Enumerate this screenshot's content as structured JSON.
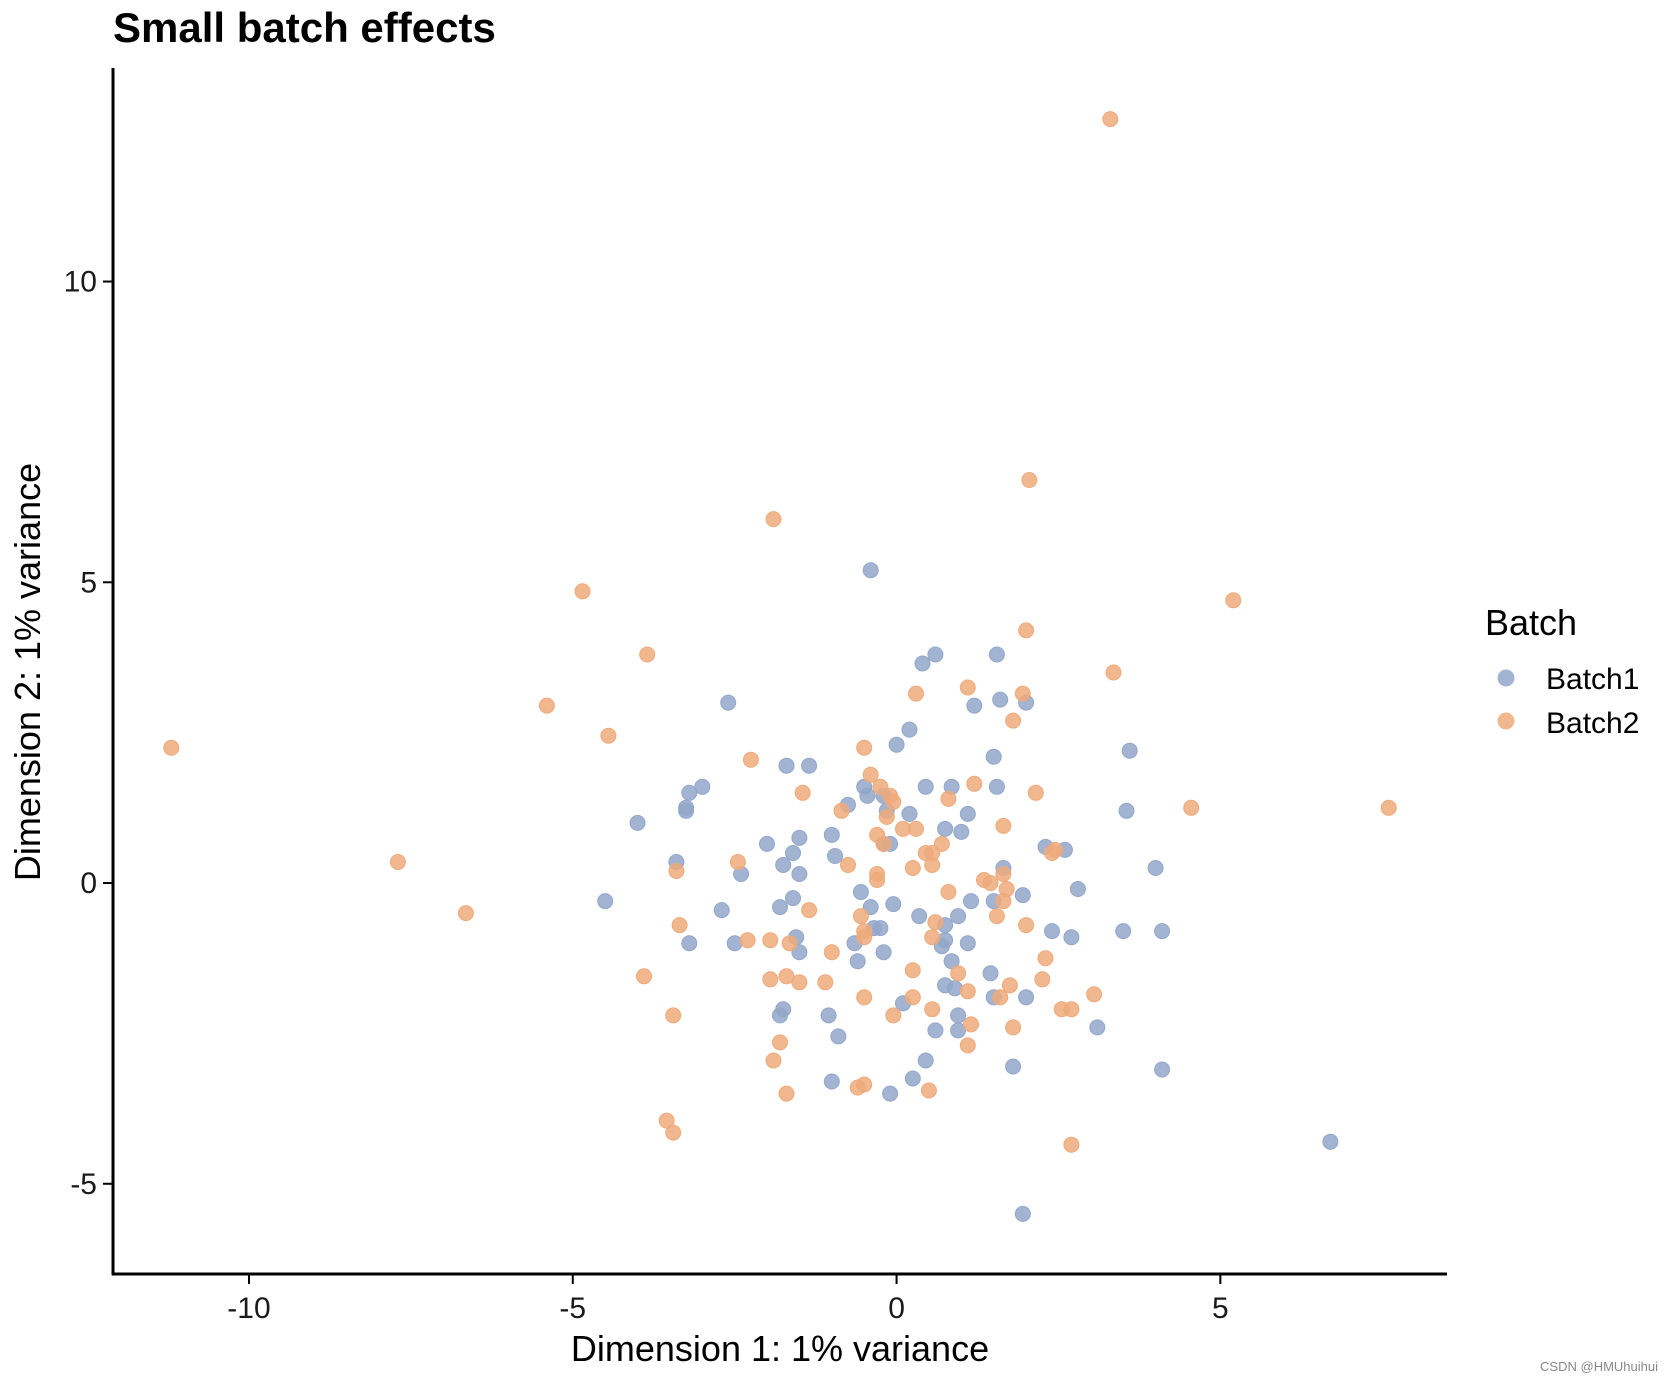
{
  "colors": {
    "batch1": "#92a7c9",
    "batch2": "#eeaa7b",
    "axis": "#000000"
  },
  "watermark": "CSDN @HMUhuihui",
  "chart_data": {
    "type": "scatter",
    "title": "Small batch effects",
    "xlabel": "Dimension 1: 1% variance",
    "ylabel": "Dimension 2: 1% variance",
    "xlim": [
      -12.1,
      8.5
    ],
    "ylim": [
      -6.5,
      13.55
    ],
    "xticks": [
      -10,
      -5,
      0,
      5
    ],
    "xtick_labels": [
      "-10",
      "-5",
      "0",
      "5"
    ],
    "yticks": [
      -5,
      0,
      5,
      10
    ],
    "ytick_labels": [
      "-5",
      "0",
      "5",
      "10"
    ],
    "grid": false,
    "legend": {
      "title": "Batch",
      "position": "right"
    },
    "series": [
      {
        "name": "Batch1",
        "color_key": "batch1",
        "points": [
          [
            -0.4,
            5.2
          ],
          [
            -2.6,
            3.0
          ],
          [
            -3.0,
            1.6
          ],
          [
            -3.2,
            1.5
          ],
          [
            -3.25,
            1.25
          ],
          [
            -3.25,
            1.2
          ],
          [
            -4.0,
            1.0
          ],
          [
            -3.4,
            0.35
          ],
          [
            -4.5,
            -0.3
          ],
          [
            -3.2,
            -1.0
          ],
          [
            -2.7,
            -0.45
          ],
          [
            -2.5,
            -1.0
          ],
          [
            -2.4,
            0.15
          ],
          [
            -2.0,
            0.65
          ],
          [
            -1.7,
            1.95
          ],
          [
            -1.35,
            1.95
          ],
          [
            -1.5,
            0.75
          ],
          [
            -1.6,
            0.5
          ],
          [
            -1.75,
            0.3
          ],
          [
            -1.5,
            0.15
          ],
          [
            -1.6,
            -0.25
          ],
          [
            -1.8,
            -0.4
          ],
          [
            -1.55,
            -0.9
          ],
          [
            -1.5,
            -1.15
          ],
          [
            -1.75,
            -2.1
          ],
          [
            -1.8,
            -2.2
          ],
          [
            -1.05,
            -2.2
          ],
          [
            -0.9,
            -2.55
          ],
          [
            -1.0,
            -3.3
          ],
          [
            -0.1,
            -3.5
          ],
          [
            0.25,
            -3.25
          ],
          [
            0.45,
            -2.95
          ],
          [
            0.6,
            -2.45
          ],
          [
            0.95,
            -2.2
          ],
          [
            0.95,
            -2.45
          ],
          [
            0.75,
            -1.7
          ],
          [
            0.9,
            -1.75
          ],
          [
            0.85,
            -1.3
          ],
          [
            0.7,
            -1.05
          ],
          [
            0.75,
            -0.95
          ],
          [
            0.75,
            -0.7
          ],
          [
            0.35,
            -0.55
          ],
          [
            0.95,
            -0.55
          ],
          [
            1.1,
            -1.0
          ],
          [
            1.15,
            -0.3
          ],
          [
            1.45,
            -1.5
          ],
          [
            1.5,
            -1.9
          ],
          [
            1.5,
            -0.3
          ],
          [
            1.65,
            0.25
          ],
          [
            1.95,
            -0.2
          ],
          [
            2.0,
            -1.9
          ],
          [
            1.8,
            -3.05
          ],
          [
            1.95,
            -5.5
          ],
          [
            2.4,
            -0.8
          ],
          [
            2.7,
            -0.9
          ],
          [
            2.3,
            0.6
          ],
          [
            2.6,
            0.55
          ],
          [
            2.8,
            -0.1
          ],
          [
            3.1,
            -2.4
          ],
          [
            3.5,
            -0.8
          ],
          [
            3.55,
            1.2
          ],
          [
            3.6,
            2.2
          ],
          [
            4.0,
            0.25
          ],
          [
            4.1,
            -0.8
          ],
          [
            4.1,
            -3.1
          ],
          [
            6.7,
            -4.3
          ],
          [
            1.0,
            0.85
          ],
          [
            1.1,
            1.15
          ],
          [
            0.75,
            0.9
          ],
          [
            0.85,
            1.6
          ],
          [
            0.45,
            1.6
          ],
          [
            1.55,
            1.6
          ],
          [
            1.5,
            2.1
          ],
          [
            0.0,
            2.3
          ],
          [
            0.2,
            2.55
          ],
          [
            1.2,
            2.95
          ],
          [
            1.6,
            3.05
          ],
          [
            2.0,
            3.0
          ],
          [
            0.4,
            3.65
          ],
          [
            0.6,
            3.8
          ],
          [
            1.55,
            3.8
          ],
          [
            -0.5,
            1.6
          ],
          [
            -0.45,
            1.45
          ],
          [
            -0.2,
            1.45
          ],
          [
            -0.15,
            1.2
          ],
          [
            -0.75,
            1.3
          ],
          [
            -1.0,
            0.8
          ],
          [
            -0.95,
            0.45
          ],
          [
            -0.1,
            0.65
          ],
          [
            -0.2,
            0.65
          ],
          [
            0.2,
            1.15
          ],
          [
            -0.55,
            -0.15
          ],
          [
            -0.4,
            -0.4
          ],
          [
            -0.05,
            -0.35
          ],
          [
            -0.25,
            -0.75
          ],
          [
            -0.65,
            -1.0
          ],
          [
            -0.6,
            -1.3
          ],
          [
            -0.2,
            -1.15
          ],
          [
            0.1,
            -2.0
          ],
          [
            -0.35,
            -0.75
          ]
        ]
      },
      {
        "name": "Batch2",
        "color_key": "batch2",
        "points": [
          [
            3.3,
            12.7
          ],
          [
            2.05,
            6.7
          ],
          [
            -1.9,
            6.05
          ],
          [
            -4.85,
            4.85
          ],
          [
            5.2,
            4.7
          ],
          [
            2.0,
            4.2
          ],
          [
            -3.85,
            3.8
          ],
          [
            3.35,
            3.5
          ],
          [
            1.1,
            3.25
          ],
          [
            0.3,
            3.15
          ],
          [
            1.95,
            3.15
          ],
          [
            -5.4,
            2.95
          ],
          [
            1.8,
            2.7
          ],
          [
            -4.45,
            2.45
          ],
          [
            -11.2,
            2.25
          ],
          [
            -0.5,
            2.25
          ],
          [
            -2.25,
            2.05
          ],
          [
            -0.4,
            1.8
          ],
          [
            1.2,
            1.65
          ],
          [
            2.15,
            1.5
          ],
          [
            -1.45,
            1.5
          ],
          [
            -0.25,
            1.6
          ],
          [
            -0.1,
            1.45
          ],
          [
            -0.05,
            1.35
          ],
          [
            0.8,
            1.4
          ],
          [
            -0.85,
            1.2
          ],
          [
            -0.15,
            1.1
          ],
          [
            7.6,
            1.25
          ],
          [
            4.55,
            1.25
          ],
          [
            1.65,
            0.95
          ],
          [
            0.1,
            0.9
          ],
          [
            0.3,
            0.9
          ],
          [
            -0.3,
            0.8
          ],
          [
            -0.2,
            0.65
          ],
          [
            0.7,
            0.65
          ],
          [
            0.45,
            0.5
          ],
          [
            0.55,
            0.5
          ],
          [
            2.4,
            0.5
          ],
          [
            2.45,
            0.55
          ],
          [
            -7.7,
            0.35
          ],
          [
            -2.45,
            0.35
          ],
          [
            -0.75,
            0.3
          ],
          [
            0.25,
            0.25
          ],
          [
            0.55,
            0.3
          ],
          [
            -3.4,
            0.2
          ],
          [
            -0.3,
            0.15
          ],
          [
            -0.3,
            0.05
          ],
          [
            1.65,
            0.15
          ],
          [
            1.35,
            0.05
          ],
          [
            1.45,
            0.0
          ],
          [
            1.7,
            -0.1
          ],
          [
            0.8,
            -0.15
          ],
          [
            1.65,
            -0.3
          ],
          [
            -6.65,
            -0.5
          ],
          [
            -1.35,
            -0.45
          ],
          [
            -0.55,
            -0.55
          ],
          [
            0.6,
            -0.65
          ],
          [
            1.55,
            -0.55
          ],
          [
            -3.35,
            -0.7
          ],
          [
            -0.5,
            -0.8
          ],
          [
            -0.5,
            -0.9
          ],
          [
            2.0,
            -0.7
          ],
          [
            -2.3,
            -0.95
          ],
          [
            -1.95,
            -0.95
          ],
          [
            -1.65,
            -1.0
          ],
          [
            0.55,
            -0.9
          ],
          [
            2.3,
            -1.25
          ],
          [
            -1.0,
            -1.15
          ],
          [
            -3.9,
            -1.55
          ],
          [
            -1.95,
            -1.6
          ],
          [
            -1.7,
            -1.55
          ],
          [
            -1.5,
            -1.65
          ],
          [
            -1.1,
            -1.65
          ],
          [
            0.25,
            -1.45
          ],
          [
            0.95,
            -1.5
          ],
          [
            1.1,
            -1.8
          ],
          [
            1.75,
            -1.7
          ],
          [
            1.6,
            -1.9
          ],
          [
            2.25,
            -1.6
          ],
          [
            3.05,
            -1.85
          ],
          [
            -0.5,
            -1.9
          ],
          [
            0.25,
            -1.9
          ],
          [
            0.55,
            -2.1
          ],
          [
            -0.05,
            -2.2
          ],
          [
            -3.45,
            -2.2
          ],
          [
            2.55,
            -2.1
          ],
          [
            2.7,
            -2.1
          ],
          [
            1.15,
            -2.35
          ],
          [
            1.8,
            -2.4
          ],
          [
            -1.8,
            -2.65
          ],
          [
            1.1,
            -2.7
          ],
          [
            -1.9,
            -2.95
          ],
          [
            -0.6,
            -3.4
          ],
          [
            -0.5,
            -3.35
          ],
          [
            0.5,
            -3.45
          ],
          [
            -1.7,
            -3.5
          ],
          [
            -3.55,
            -3.95
          ],
          [
            -3.45,
            -4.15
          ],
          [
            2.7,
            -4.35
          ]
        ]
      }
    ]
  }
}
